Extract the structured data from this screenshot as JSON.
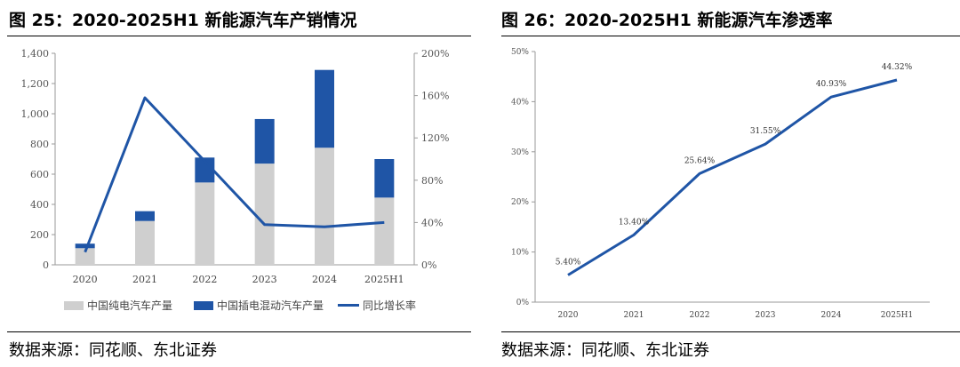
{
  "left": {
    "title": "图 25：2020-2025H1 新能源汽车产销情况",
    "source": "数据来源：同花顺、东北证券",
    "legend": {
      "bev": "中国纯电汽车产量",
      "phev": "中国插电混动汽车产量",
      "yoy": "同比增长率"
    }
  },
  "right": {
    "title": "图 26：2020-2025H1 新能源汽车渗透率",
    "source": "数据来源：同花顺、东北证券"
  },
  "colors": {
    "bev": "#cfcfcf",
    "phev": "#1f55a6",
    "line": "#1f55a6",
    "axis": "#9a9a9a"
  },
  "chart_data": [
    {
      "type": "bar",
      "stacked": true,
      "categories": [
        "2020",
        "2021",
        "2022",
        "2023",
        "2024",
        "2025H1"
      ],
      "series": [
        {
          "name": "中国纯电汽车产量",
          "values": [
            110,
            290,
            545,
            670,
            775,
            445
          ]
        },
        {
          "name": "中国插电混动汽车产量",
          "values": [
            30,
            65,
            165,
            295,
            515,
            255
          ]
        },
        {
          "name": "同比增长率",
          "type": "line",
          "axis": "right",
          "values": [
            12,
            158,
            98,
            38,
            36,
            40
          ]
        }
      ],
      "ylim": [
        0,
        1400
      ],
      "y_ticks": [
        "0",
        "200",
        "400",
        "600",
        "800",
        "1,000",
        "1,200",
        "1,400"
      ],
      "y2lim": [
        0,
        200
      ],
      "y2_ticks": [
        "0%",
        "40%",
        "80%",
        "120%",
        "160%",
        "200%"
      ],
      "legend_position": "bottom"
    },
    {
      "type": "line",
      "categories": [
        "2020",
        "2021",
        "2022",
        "2023",
        "2024",
        "2025H1"
      ],
      "series": [
        {
          "name": "新能源汽车渗透率",
          "values": [
            5.4,
            13.4,
            25.64,
            31.55,
            40.93,
            44.32
          ]
        }
      ],
      "data_labels": [
        "5.40%",
        "13.40%",
        "25.64%",
        "31.55%",
        "40.93%",
        "44.32%"
      ],
      "ylim": [
        0,
        50
      ],
      "y_ticks": [
        "0%",
        "10%",
        "20%",
        "30%",
        "40%",
        "50%"
      ]
    }
  ]
}
